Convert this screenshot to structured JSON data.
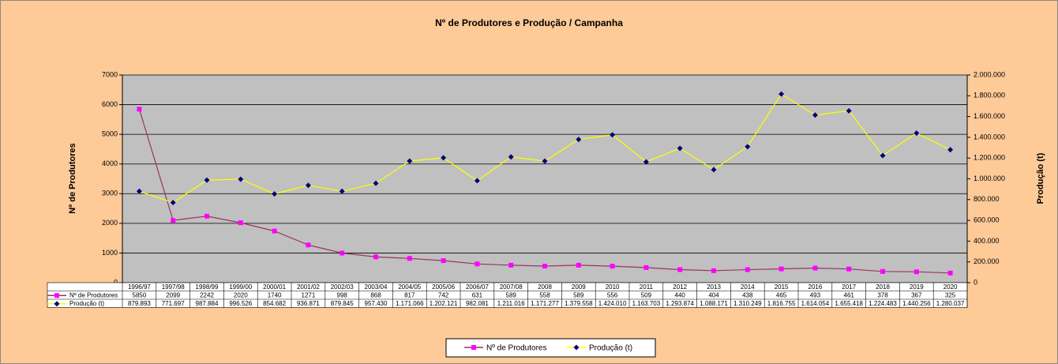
{
  "chart_data": {
    "type": "line",
    "title": "Nº de Produtores e Produção / Campanha",
    "y_label": "Nº de Produtores",
    "y2_label": "Produção (t)",
    "categories": [
      "1996/97",
      "1997/98",
      "1998/99",
      "1999/00",
      "2000/01",
      "2001/02",
      "2002/03",
      "2003/04",
      "2004/05",
      "2005/06",
      "2006/07",
      "2007/08",
      "2008",
      "2009",
      "2010",
      "2011",
      "2012",
      "2013",
      "2014",
      "2015",
      "2016",
      "2017",
      "2018",
      "2019",
      "2020"
    ],
    "series": [
      {
        "name": "Nº de Produtores",
        "color": "#993366",
        "marker_color": "#ff00ff",
        "marker": "square",
        "values": [
          5850,
          2099,
          2242,
          2020,
          1740,
          1271,
          998,
          868,
          817,
          742,
          631,
          589,
          558,
          589,
          556,
          509,
          440,
          404,
          438,
          465,
          493,
          461,
          378,
          367,
          325
        ]
      },
      {
        "name": "Produção (t)",
        "color": "#ffff00",
        "marker_color": "#000080",
        "marker": "diamond",
        "axis": "y2",
        "values": [
          879893,
          771697,
          987884,
          996526,
          854682,
          936871,
          879845,
          957430,
          1171066,
          1202121,
          982081,
          1211016,
          1171277,
          1379558,
          1424010,
          1163703,
          1293874,
          1088171,
          1310249,
          1816755,
          1614054,
          1655418,
          1224483,
          1440256,
          1280037
        ],
        "value_labels": [
          "879.893",
          "771.697",
          "987.884",
          "996.526",
          "854.682",
          "936.871",
          "879.845",
          "957.430",
          "1.171.066",
          "1.202.121",
          "982.081",
          "1.211.016",
          "1.171.277",
          "1.379.558",
          "1.424.010",
          "1.163.703",
          "1.293.874",
          "1.088.171",
          "1.310.249",
          "1.816.755",
          "1.614.054",
          "1.655.418",
          "1.224.483",
          "1.440.256",
          "1.280.037"
        ]
      }
    ],
    "ylim": [
      0,
      7000
    ],
    "yticks": [
      0,
      1000,
      2000,
      3000,
      4000,
      5000,
      6000,
      7000
    ],
    "y2lim": [
      0,
      2000000
    ],
    "y2ticks": [
      0,
      {
        "value": 200000,
        "label": "200.000"
      },
      {
        "value": 400000,
        "label": "400.000"
      },
      {
        "value": 600000,
        "label": "600.000"
      },
      {
        "value": 800000,
        "label": "800.000"
      },
      {
        "value": 1000000,
        "label": "1.000.000"
      },
      {
        "value": 1200000,
        "label": "1.200.000"
      },
      {
        "value": 1400000,
        "label": "1.400.000"
      },
      {
        "value": 1600000,
        "label": "1.600.000"
      },
      {
        "value": 1800000,
        "label": "1.800.000"
      },
      {
        "value": 2000000,
        "label": "2.000.000"
      }
    ],
    "grid": true,
    "legend": "bottom"
  }
}
